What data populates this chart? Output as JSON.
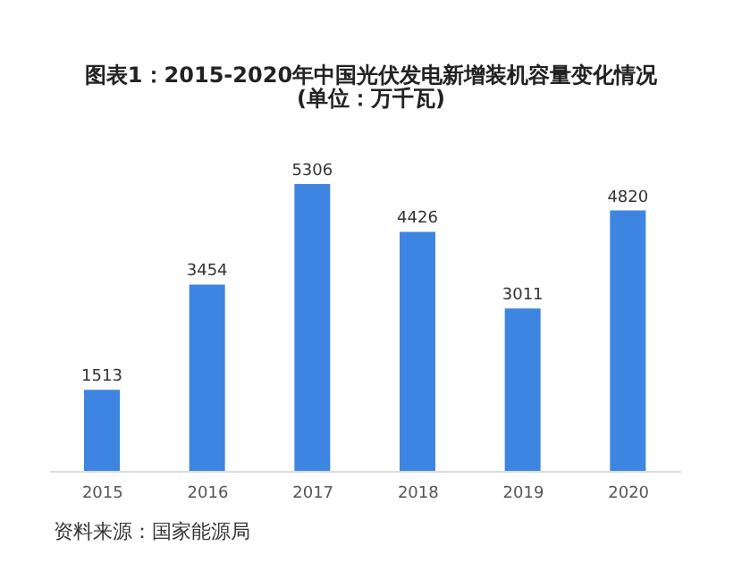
{
  "chart_data": {
    "type": "bar",
    "title": "图表1：2015-2020年中国光伏发电新增装机容量变化情况",
    "subtitle": "(单位：万千瓦)",
    "categories": [
      "2015",
      "2016",
      "2017",
      "2018",
      "2019",
      "2020"
    ],
    "values": [
      1513,
      3454,
      5306,
      4426,
      3011,
      4820
    ],
    "color": "#3d85e0",
    "data_labels": true,
    "annotations": [
      "资料来源：国家能源局"
    ]
  }
}
